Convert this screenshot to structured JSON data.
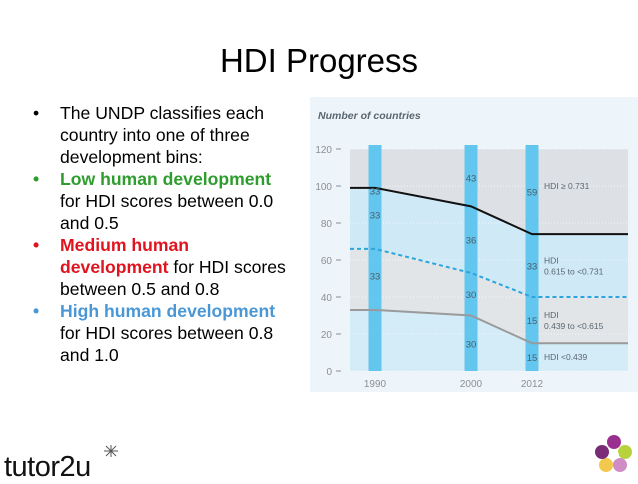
{
  "slide": {
    "title": "HDI Progress",
    "bullets": [
      {
        "text": "The UNDP classifies each country into one of three development bins:"
      },
      {
        "highlight": "Low human development",
        "rest": " for HDI scores between 0.0 and 0.5",
        "color": "#2e9d2e"
      },
      {
        "highlight": "Medium human development",
        "rest": " for HDI scores between 0.5 and 0.8",
        "color": "#e0141e"
      },
      {
        "highlight": "High human development",
        "rest": " for HDI scores between 0.8 and 1.0",
        "color": "#4a97d6"
      }
    ],
    "bullet_glyph": "•",
    "logo_text": "tutor2u"
  },
  "chart_data": {
    "type": "line",
    "title": "Number of countries",
    "x": [
      "1990",
      "2000",
      "2012"
    ],
    "ylim": [
      0,
      120
    ],
    "yticks": [
      0,
      20,
      40,
      60,
      80,
      100,
      120
    ],
    "series": [
      {
        "values": [
          99,
          89,
          74
        ],
        "style": "solid",
        "color": "#111111"
      },
      {
        "values": [
          66,
          53,
          40
        ],
        "style": "dashed",
        "color": "#2aa6dd"
      },
      {
        "values": [
          33,
          30,
          15
        ],
        "style": "solid",
        "color": "#9a9a9a"
      }
    ],
    "bar_segment_labels": [
      {
        "x": "1990",
        "labels": [
          "33",
          "33",
          "33"
        ]
      },
      {
        "x": "2000",
        "labels": [
          "43",
          "36",
          "30",
          "30"
        ]
      },
      {
        "x": "2012",
        "labels": [
          "59",
          "33",
          "15",
          "15"
        ]
      }
    ],
    "band_labels": [
      {
        "lines": [
          "HDI ≥ 0.731"
        ]
      },
      {
        "lines": [
          "HDI",
          "0.615 to <0.731"
        ]
      },
      {
        "lines": [
          "HDI",
          "0.439 to <0.615"
        ]
      },
      {
        "lines": [
          "HDI <0.439"
        ]
      }
    ],
    "grid": true,
    "colors": {
      "panel_bg": "#eef5fa",
      "band_top": "#dde1e5",
      "band_mid_high": "#cfe9f6",
      "band_mid_low": "#e1e5e8",
      "band_low": "#d3ecf7",
      "column": "#63c6ee",
      "axis_text": "#8a8f94"
    }
  }
}
